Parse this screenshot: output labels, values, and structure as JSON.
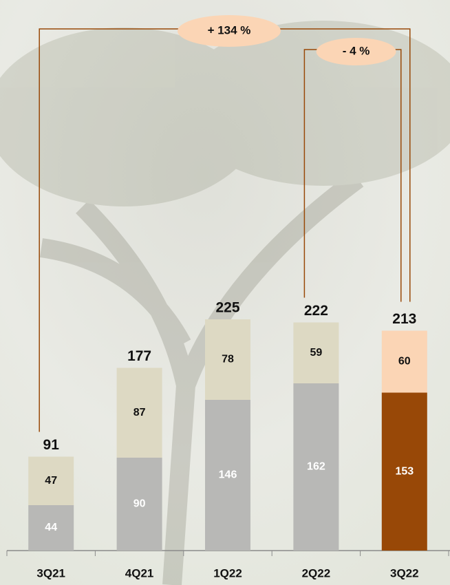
{
  "chart_data": {
    "type": "stacked-bar",
    "categories": [
      "3Q21",
      "4Q21",
      "1Q22",
      "2Q22",
      "3Q22"
    ],
    "series": [
      {
        "values": [
          44,
          90,
          146,
          162,
          153
        ],
        "colors": [
          "#b8b8b6",
          "#b8b8b6",
          "#b8b8b6",
          "#b8b8b6",
          "#984807"
        ],
        "label_color": "#ffffff"
      },
      {
        "values": [
          47,
          87,
          78,
          59,
          60
        ],
        "colors": [
          "#ddd9c3",
          "#ddd9c3",
          "#ddd9c3",
          "#ddd9c3",
          "#fbd5b5"
        ],
        "label_color": "#111111"
      }
    ],
    "totals": [
      91,
      177,
      225,
      222,
      213
    ],
    "annotations": [
      {
        "text": "+ 134  %",
        "from": 0,
        "to": 4
      },
      {
        "text": "- 4 %",
        "from": 3,
        "to": 4
      }
    ],
    "annotation_color": "#984807",
    "annotation_fill": "#fbd5b5"
  }
}
